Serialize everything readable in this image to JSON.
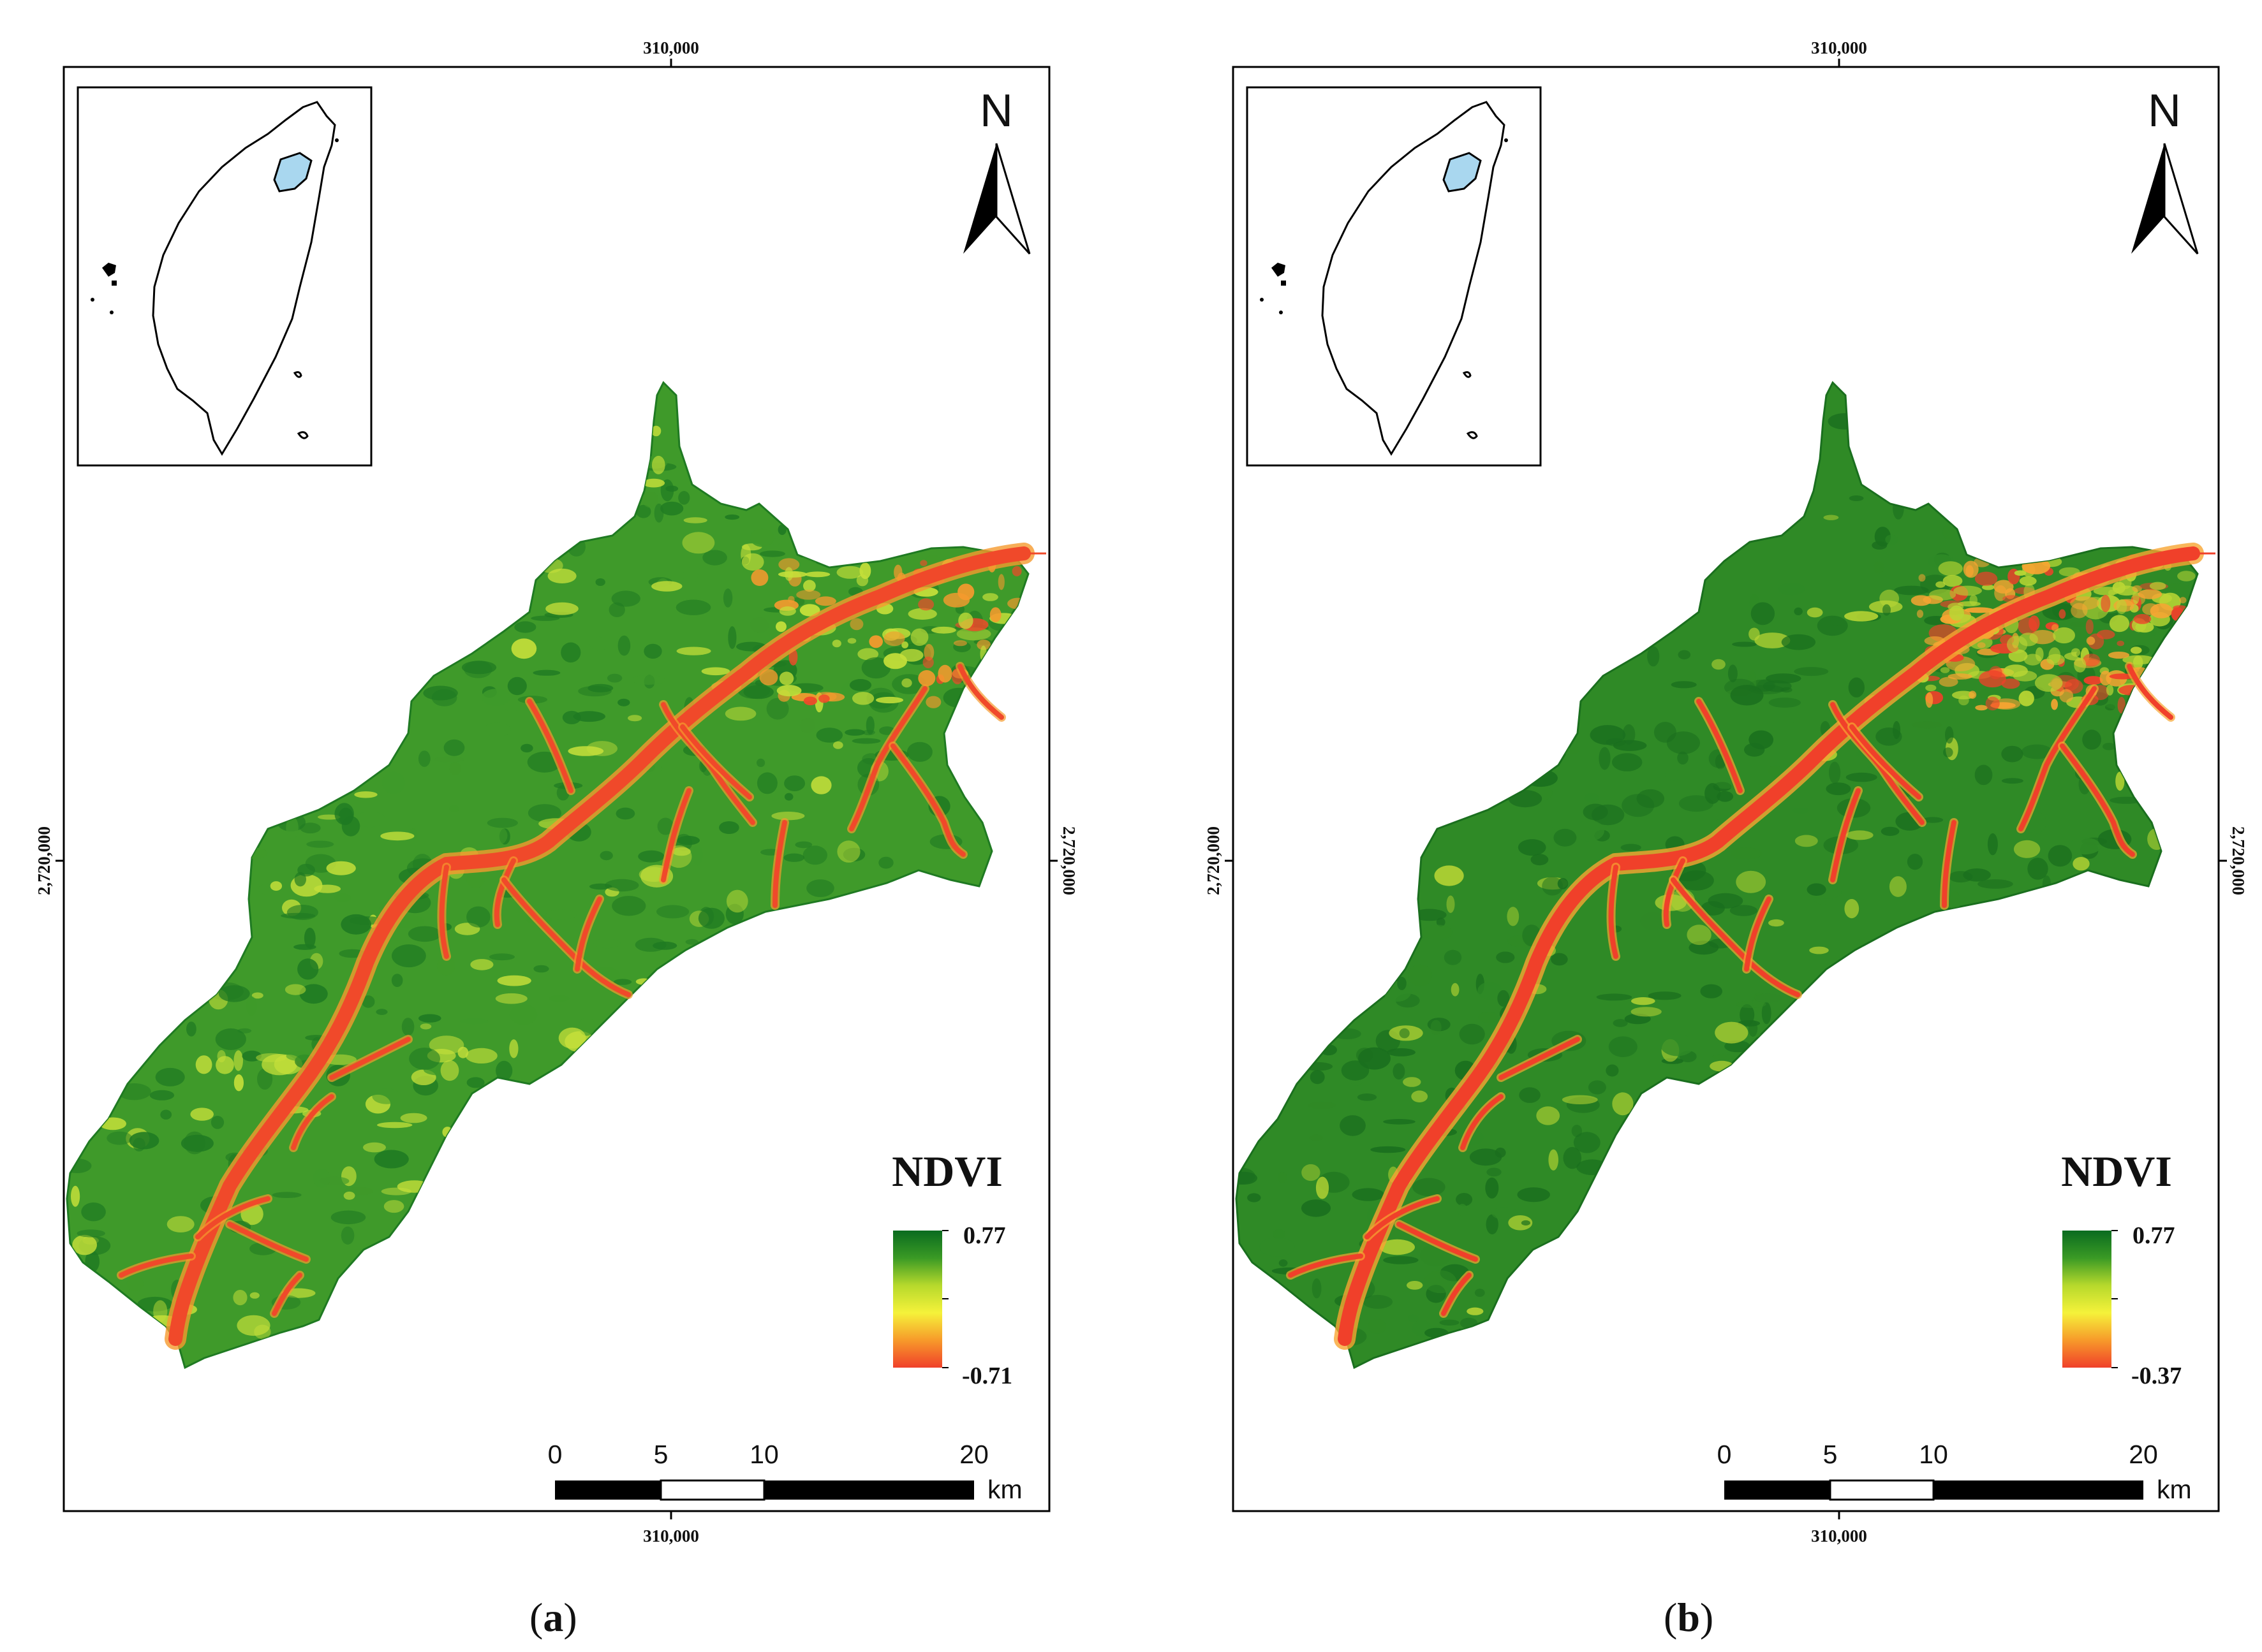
{
  "panels": [
    {
      "id": "a",
      "caption_open": "(",
      "caption_letter": "a",
      "caption_close": ")",
      "x_tick_top": "310,000",
      "x_tick_bottom": "310,000",
      "y_tick_left": "2,720,000",
      "y_tick_right": "2,720,000",
      "north_label": "N",
      "legend": {
        "title": "NDVI",
        "max": "0.77",
        "min": "-0.71",
        "colors": [
          "#0a6b1f",
          "#3a9a25",
          "#b6d92c",
          "#f5f23a",
          "#f79a2a",
          "#f0402a"
        ]
      },
      "scale": {
        "labels": [
          "0",
          "5",
          "10",
          "20"
        ],
        "unit": "km"
      },
      "colors": {
        "veg_dark": "#1f7a22",
        "veg_mid": "#3f9a2a",
        "veg_light": "#c6e03a",
        "river": "#f0492a",
        "river_edge": "#f59a2e",
        "inset_fill": "#a9d7ef"
      },
      "urban_intensity": 0.35
    },
    {
      "id": "b",
      "caption_open": "(",
      "caption_letter": "b",
      "caption_close": ")",
      "x_tick_top": "310,000",
      "x_tick_bottom": "310,000",
      "y_tick_left": "2,720,000",
      "y_tick_right": "2,720,000",
      "north_label": "N",
      "legend": {
        "title": "NDVI",
        "max": "0.77",
        "min": "-0.37",
        "colors": [
          "#0a6b1f",
          "#3a9a25",
          "#b6d92c",
          "#f5f23a",
          "#f79a2a",
          "#f0402a"
        ]
      },
      "scale": {
        "labels": [
          "0",
          "5",
          "10",
          "20"
        ],
        "unit": "km"
      },
      "colors": {
        "veg_dark": "#1a6f1e",
        "veg_mid": "#2f8a26",
        "veg_light": "#b9d634",
        "river": "#f0402a",
        "river_edge": "#f7a532",
        "inset_fill": "#a9d7ef"
      },
      "urban_intensity": 0.85
    }
  ]
}
